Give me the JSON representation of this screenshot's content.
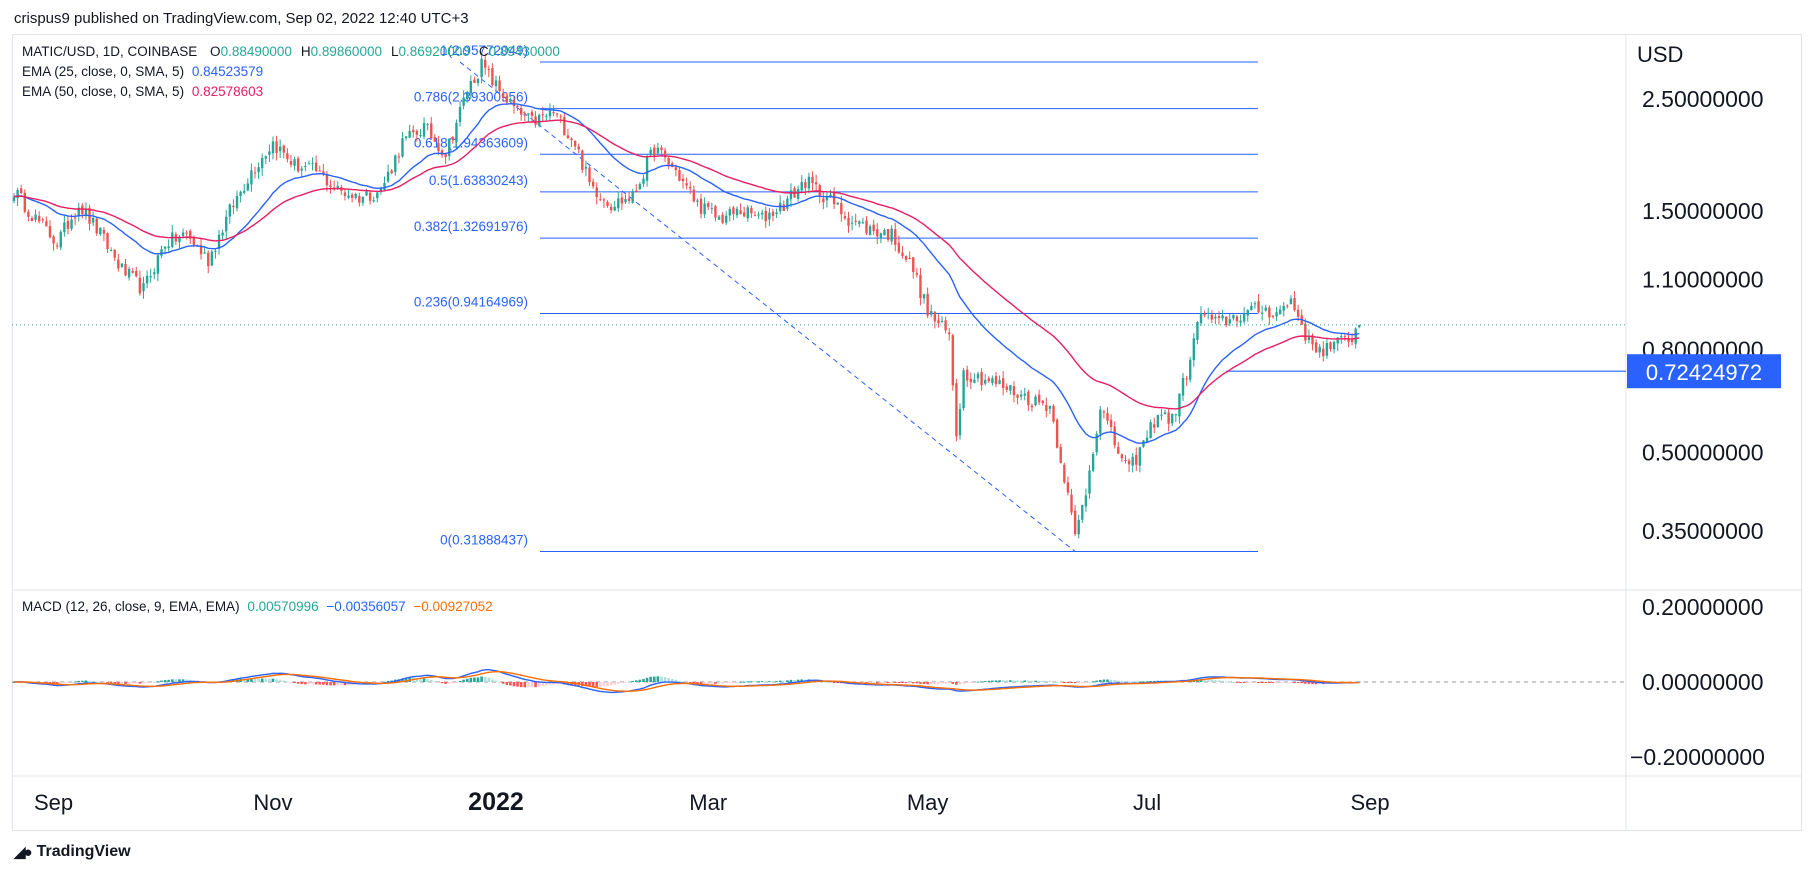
{
  "header": {
    "text": "crispus9 published on TradingView.com, Sep 02, 2022 12:40 UTC+3"
  },
  "legend": {
    "symbol": "MATIC/USD, 1D, COINBASE",
    "ohlc": [
      {
        "key": "O",
        "value": "0.88490000"
      },
      {
        "key": "H",
        "value": "0.89860000"
      },
      {
        "key": "L",
        "value": "0.86920000"
      },
      {
        "key": "C",
        "value": "0.89430000"
      }
    ],
    "ema25": {
      "label": "EMA (25, close, 0, SMA, 5)",
      "value": "0.84523579",
      "color": "#2962ff"
    },
    "ema50": {
      "label": "EMA (50, close, 0, SMA, 5)",
      "value": "0.82578603",
      "color": "#e91e63"
    },
    "macd": {
      "label": "MACD (12, 26, close, 9, EMA, EMA)",
      "hist": "0.00570996",
      "macd": "−0.00356057",
      "signal": "−0.00927052"
    }
  },
  "footer": {
    "brand": "TradingView"
  },
  "colors": {
    "up": "#26a69a",
    "down": "#ef5350",
    "ema25": "#2962ff",
    "ema50": "#e91e63",
    "fib": "#2962ff",
    "signal": "#ff6d00",
    "price_tag": "#2962ff",
    "axis_text": "#131722"
  },
  "chart_data": [
    {
      "type": "candlestick",
      "title": "MATIC/USD, 1D, COINBASE",
      "yscale": "log",
      "y_unit": "USD",
      "ylim": [
        0.27,
        3.3
      ],
      "x_start": "2022-08-20 (approx 2021-08-20)",
      "x_ticks": [
        {
          "label": "Sep",
          "day": 11
        },
        {
          "label": "Nov",
          "day": 72
        },
        {
          "label": "2022",
          "day": 134
        },
        {
          "label": "Mar",
          "day": 193
        },
        {
          "label": "May",
          "day": 254
        },
        {
          "label": "Jul",
          "day": 315
        },
        {
          "label": "Sep",
          "day": 377
        }
      ],
      "y_ticks": [
        {
          "label": "2.50000000",
          "value": 2.5
        },
        {
          "label": "1.50000000",
          "value": 1.5
        },
        {
          "label": "1.10000000",
          "value": 1.1
        },
        {
          "label": "0.80000000",
          "value": 0.8
        },
        {
          "label": "0.50000000",
          "value": 0.5
        },
        {
          "label": "0.35000000",
          "value": 0.35
        }
      ],
      "last_price": 0.8943,
      "price_tag": {
        "label": "0.72424972",
        "value": 0.72424972
      },
      "fib_levels": [
        {
          "label": "1(2.95772049)",
          "ratio": "1",
          "value": 2.95772049
        },
        {
          "label": "0.786(2.39300956)",
          "ratio": "0.786",
          "value": 2.39300956
        },
        {
          "label": "0.618(1.94363609)",
          "ratio": "0.618",
          "value": 1.94363609
        },
        {
          "label": "0.5(1.63830243)",
          "ratio": "0.5",
          "value": 1.63830243
        },
        {
          "label": "0.382(1.32691976)",
          "ratio": "0.382",
          "value": 1.32691976
        },
        {
          "label": "0.236(0.94164969)",
          "ratio": "0.236",
          "value": 0.94164969
        },
        {
          "label": "0(0.31888437)",
          "ratio": "0",
          "value": 0.31888437
        }
      ],
      "fib_day_range": [
        124,
        295
      ],
      "price_anchors": [
        [
          0,
          1.65
        ],
        [
          6,
          1.45
        ],
        [
          12,
          1.3
        ],
        [
          18,
          1.55
        ],
        [
          24,
          1.35
        ],
        [
          30,
          1.15
        ],
        [
          36,
          1.05
        ],
        [
          42,
          1.3
        ],
        [
          48,
          1.35
        ],
        [
          54,
          1.2
        ],
        [
          60,
          1.5
        ],
        [
          66,
          1.8
        ],
        [
          72,
          2.05
        ],
        [
          78,
          1.85
        ],
        [
          84,
          1.8
        ],
        [
          90,
          1.65
        ],
        [
          96,
          1.6
        ],
        [
          102,
          1.65
        ],
        [
          108,
          2.05
        ],
        [
          114,
          2.2
        ],
        [
          120,
          1.95
        ],
        [
          126,
          2.6
        ],
        [
          130,
          2.92
        ],
        [
          134,
          2.65
        ],
        [
          140,
          2.35
        ],
        [
          144,
          2.25
        ],
        [
          150,
          2.35
        ],
        [
          156,
          2.05
        ],
        [
          160,
          1.7
        ],
        [
          166,
          1.55
        ],
        [
          172,
          1.6
        ],
        [
          178,
          2.0
        ],
        [
          184,
          1.8
        ],
        [
          190,
          1.55
        ],
        [
          196,
          1.45
        ],
        [
          202,
          1.5
        ],
        [
          208,
          1.45
        ],
        [
          214,
          1.55
        ],
        [
          220,
          1.72
        ],
        [
          226,
          1.6
        ],
        [
          232,
          1.45
        ],
        [
          238,
          1.38
        ],
        [
          244,
          1.35
        ],
        [
          250,
          1.15
        ],
        [
          254,
          0.95
        ],
        [
          260,
          0.85
        ],
        [
          262,
          0.55
        ],
        [
          264,
          0.72
        ],
        [
          270,
          0.7
        ],
        [
          278,
          0.66
        ],
        [
          284,
          0.63
        ],
        [
          288,
          0.62
        ],
        [
          292,
          0.45
        ],
        [
          295,
          0.34
        ],
        [
          298,
          0.42
        ],
        [
          302,
          0.62
        ],
        [
          306,
          0.52
        ],
        [
          310,
          0.46
        ],
        [
          314,
          0.52
        ],
        [
          318,
          0.6
        ],
        [
          322,
          0.58
        ],
        [
          326,
          0.72
        ],
        [
          330,
          0.95
        ],
        [
          334,
          0.9
        ],
        [
          340,
          0.93
        ],
        [
          346,
          0.96
        ],
        [
          352,
          0.95
        ],
        [
          355,
          1.0
        ],
        [
          358,
          0.9
        ],
        [
          360,
          0.82
        ],
        [
          364,
          0.8
        ],
        [
          368,
          0.82
        ],
        [
          372,
          0.85
        ],
        [
          374,
          0.8943
        ]
      ],
      "macd_panel": {
        "ylim": [
          -0.24,
          0.24
        ],
        "y_ticks": [
          {
            "label": "0.20000000",
            "value": 0.2
          },
          {
            "label": "0.00000000",
            "value": 0.0
          },
          {
            "label": "−0.20000000",
            "value": -0.2
          }
        ]
      }
    }
  ]
}
